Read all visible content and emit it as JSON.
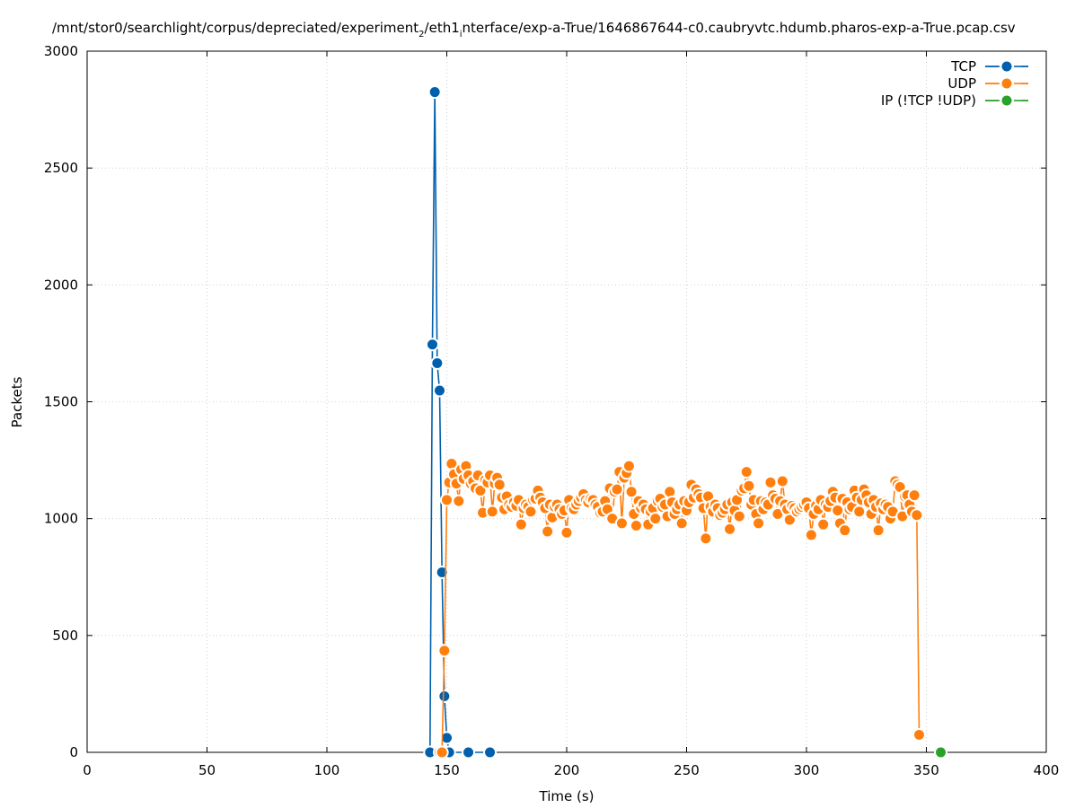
{
  "chart_data": {
    "type": "line",
    "title_main": "/mnt/stor0/searchlight/corpus/depreciated/experiment",
    "title_sub1": "2",
    "title_mid": "/eth1",
    "title_sub2": "i",
    "title_end": "nterface/exp-a-True/1646867644-c0.caubryvtc.hdumb.pharos-exp-a-True.pcap.csv",
    "xlabel": "Time (s)",
    "ylabel": "Packets",
    "xlim": [
      0,
      400
    ],
    "ylim": [
      0,
      3000
    ],
    "xticks": [
      0,
      50,
      100,
      150,
      200,
      250,
      300,
      350,
      400
    ],
    "yticks": [
      0,
      500,
      1000,
      1500,
      2000,
      2500,
      3000
    ],
    "grid": true,
    "legend_position": "top-right",
    "series": [
      {
        "name": "TCP",
        "color": "#0060ad",
        "points": [
          [
            143,
            0
          ],
          [
            144,
            1745
          ],
          [
            145,
            2825
          ],
          [
            146,
            1665
          ],
          [
            147,
            1548
          ],
          [
            148,
            770
          ],
          [
            149,
            240
          ],
          [
            150,
            62
          ],
          [
            151,
            0
          ],
          [
            159,
            0
          ],
          [
            168,
            0
          ]
        ]
      },
      {
        "name": "UDP",
        "color": "#ff7f0e",
        "points": [
          [
            147,
            0
          ],
          [
            148,
            0
          ],
          [
            149,
            435
          ],
          [
            150,
            1080
          ],
          [
            151,
            1155
          ],
          [
            152,
            1235
          ],
          [
            153,
            1190
          ],
          [
            154,
            1150
          ],
          [
            155,
            1075
          ],
          [
            156,
            1210
          ],
          [
            157,
            1170
          ],
          [
            158,
            1225
          ],
          [
            159,
            1185
          ],
          [
            160,
            1150
          ],
          [
            161,
            1160
          ],
          [
            162,
            1130
          ],
          [
            163,
            1185
          ],
          [
            164,
            1120
          ],
          [
            165,
            1025
          ],
          [
            166,
            1165
          ],
          [
            167,
            1155
          ],
          [
            168,
            1185
          ],
          [
            169,
            1030
          ],
          [
            170,
            1150
          ],
          [
            171,
            1175
          ],
          [
            172,
            1145
          ],
          [
            173,
            1090
          ],
          [
            174,
            1040
          ],
          [
            175,
            1095
          ],
          [
            176,
            1060
          ],
          [
            177,
            1050
          ],
          [
            178,
            1070
          ],
          [
            179,
            1055
          ],
          [
            180,
            1080
          ],
          [
            181,
            975
          ],
          [
            182,
            1045
          ],
          [
            183,
            1060
          ],
          [
            184,
            1050
          ],
          [
            185,
            1030
          ],
          [
            186,
            1080
          ],
          [
            187,
            1085
          ],
          [
            188,
            1120
          ],
          [
            189,
            1090
          ],
          [
            190,
            1070
          ],
          [
            191,
            1045
          ],
          [
            192,
            945
          ],
          [
            193,
            1060
          ],
          [
            194,
            1005
          ],
          [
            195,
            1050
          ],
          [
            196,
            1060
          ],
          [
            197,
            1040
          ],
          [
            198,
            1020
          ],
          [
            199,
            1035
          ],
          [
            200,
            940
          ],
          [
            201,
            1080
          ],
          [
            202,
            1045
          ],
          [
            203,
            1040
          ],
          [
            204,
            1060
          ],
          [
            205,
            1075
          ],
          [
            206,
            1090
          ],
          [
            207,
            1105
          ],
          [
            208,
            1080
          ],
          [
            209,
            1070
          ],
          [
            210,
            1085
          ],
          [
            211,
            1080
          ],
          [
            212,
            1060
          ],
          [
            213,
            1050
          ],
          [
            214,
            1025
          ],
          [
            215,
            1030
          ],
          [
            216,
            1075
          ],
          [
            217,
            1040
          ],
          [
            218,
            1130
          ],
          [
            219,
            1000
          ],
          [
            220,
            1115
          ],
          [
            221,
            1125
          ],
          [
            222,
            1200
          ],
          [
            223,
            980
          ],
          [
            224,
            1175
          ],
          [
            225,
            1195
          ],
          [
            226,
            1225
          ],
          [
            227,
            1115
          ],
          [
            228,
            1020
          ],
          [
            229,
            970
          ],
          [
            230,
            1075
          ],
          [
            231,
            1045
          ],
          [
            232,
            1060
          ],
          [
            233,
            1040
          ],
          [
            234,
            975
          ],
          [
            235,
            1030
          ],
          [
            236,
            1045
          ],
          [
            237,
            1000
          ],
          [
            238,
            1075
          ],
          [
            239,
            1085
          ],
          [
            240,
            1050
          ],
          [
            241,
            1060
          ],
          [
            242,
            1010
          ],
          [
            243,
            1115
          ],
          [
            244,
            1070
          ],
          [
            245,
            1020
          ],
          [
            246,
            1040
          ],
          [
            247,
            1060
          ],
          [
            248,
            980
          ],
          [
            249,
            1075
          ],
          [
            250,
            1035
          ],
          [
            251,
            1070
          ],
          [
            252,
            1145
          ],
          [
            253,
            1090
          ],
          [
            254,
            1125
          ],
          [
            255,
            1105
          ],
          [
            256,
            1090
          ],
          [
            257,
            1045
          ],
          [
            258,
            915
          ],
          [
            259,
            1095
          ],
          [
            260,
            1050
          ],
          [
            261,
            1030
          ],
          [
            262,
            1060
          ],
          [
            263,
            1045
          ],
          [
            264,
            1015
          ],
          [
            265,
            1025
          ],
          [
            266,
            1040
          ],
          [
            267,
            1060
          ],
          [
            268,
            955
          ],
          [
            269,
            1070
          ],
          [
            270,
            1035
          ],
          [
            271,
            1080
          ],
          [
            272,
            1010
          ],
          [
            273,
            1120
          ],
          [
            274,
            1130
          ],
          [
            275,
            1200
          ],
          [
            276,
            1140
          ],
          [
            277,
            1060
          ],
          [
            278,
            1080
          ],
          [
            279,
            1020
          ],
          [
            280,
            980
          ],
          [
            281,
            1075
          ],
          [
            282,
            1040
          ],
          [
            283,
            1070
          ],
          [
            284,
            1060
          ],
          [
            285,
            1155
          ],
          [
            286,
            1100
          ],
          [
            287,
            1085
          ],
          [
            288,
            1020
          ],
          [
            289,
            1075
          ],
          [
            290,
            1160
          ],
          [
            291,
            1060
          ],
          [
            292,
            1040
          ],
          [
            293,
            995
          ],
          [
            294,
            1055
          ],
          [
            295,
            1045
          ],
          [
            296,
            1030
          ],
          [
            297,
            1040
          ],
          [
            298,
            1050
          ],
          [
            299,
            1060
          ],
          [
            300,
            1070
          ],
          [
            301,
            1045
          ],
          [
            302,
            930
          ],
          [
            303,
            1020
          ],
          [
            304,
            1055
          ],
          [
            305,
            1040
          ],
          [
            306,
            1080
          ],
          [
            307,
            975
          ],
          [
            308,
            1060
          ],
          [
            309,
            1050
          ],
          [
            310,
            1075
          ],
          [
            311,
            1115
          ],
          [
            312,
            1090
          ],
          [
            313,
            1035
          ],
          [
            314,
            980
          ],
          [
            315,
            1085
          ],
          [
            316,
            950
          ],
          [
            317,
            1070
          ],
          [
            318,
            1040
          ],
          [
            319,
            1050
          ],
          [
            320,
            1120
          ],
          [
            321,
            1090
          ],
          [
            322,
            1030
          ],
          [
            323,
            1080
          ],
          [
            324,
            1125
          ],
          [
            325,
            1100
          ],
          [
            326,
            1070
          ],
          [
            327,
            1020
          ],
          [
            328,
            1080
          ],
          [
            329,
            1050
          ],
          [
            330,
            950
          ],
          [
            331,
            1065
          ],
          [
            332,
            1040
          ],
          [
            333,
            1060
          ],
          [
            334,
            1050
          ],
          [
            335,
            1000
          ],
          [
            336,
            1030
          ],
          [
            337,
            1160
          ],
          [
            338,
            1145
          ],
          [
            339,
            1135
          ],
          [
            340,
            1010
          ],
          [
            341,
            1095
          ],
          [
            342,
            1100
          ],
          [
            343,
            1060
          ],
          [
            344,
            1030
          ],
          [
            345,
            1100
          ],
          [
            346,
            1015
          ],
          [
            347,
            75
          ]
        ]
      },
      {
        "name": "IP (!TCP  !UDP)",
        "color": "#2ca02c",
        "points": [
          [
            356,
            0
          ]
        ]
      }
    ]
  }
}
